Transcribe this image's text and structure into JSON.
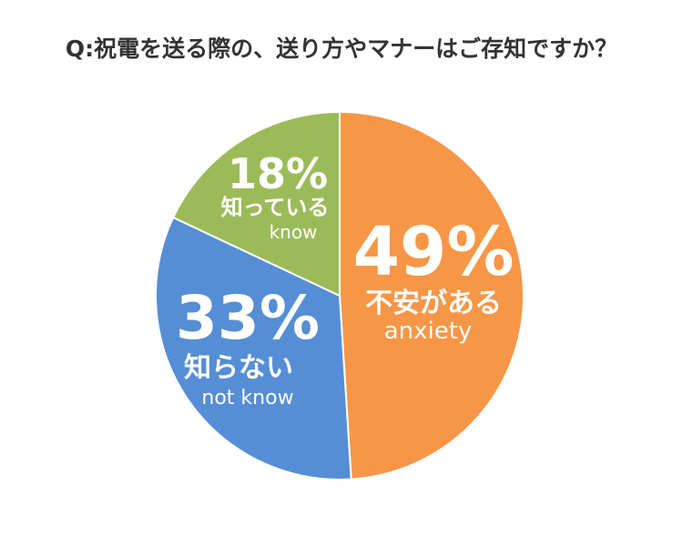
{
  "chart_data": {
    "type": "pie",
    "title": "Q:祝電を送る際の、送り方やマナーはご存知ですか？",
    "slices": [
      {
        "percent_label": "49%",
        "label": "不安がある",
        "sublabel": "anxiety",
        "value": 49,
        "color": "#f79646"
      },
      {
        "percent_label": "33%",
        "label": "知らない",
        "sublabel": "not know",
        "value": 33,
        "color": "#558ed5"
      },
      {
        "percent_label": "18%",
        "label": "知っている",
        "sublabel": "know",
        "value": 18,
        "color": "#9bbb59"
      }
    ]
  }
}
